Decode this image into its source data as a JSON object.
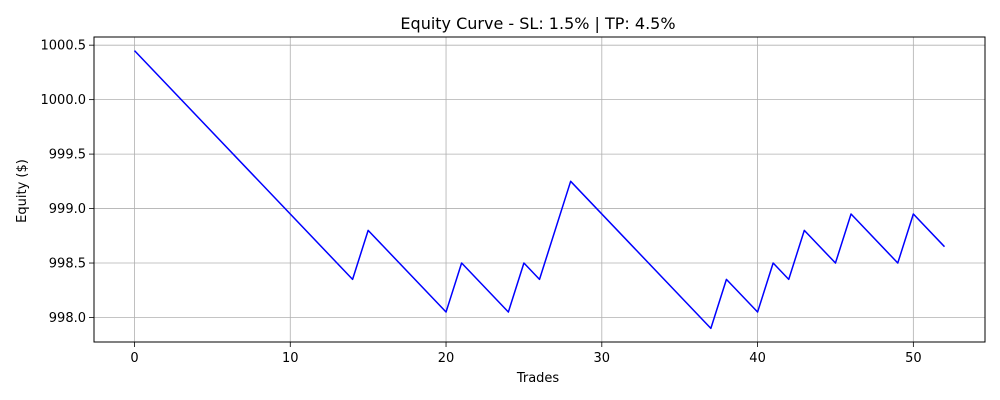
{
  "chart_data": {
    "type": "line",
    "title": "Equity Curve - SL: 1.5% | TP: 4.5%",
    "xlabel": "Trades",
    "ylabel": "Equity ($)",
    "xlim": [
      -2.6,
      54.6
    ],
    "ylim": [
      997.775,
      1000.575
    ],
    "xticks": [
      0,
      10,
      20,
      30,
      40,
      50
    ],
    "xtick_labels": [
      "0",
      "10",
      "20",
      "30",
      "40",
      "50"
    ],
    "yticks": [
      998.0,
      998.5,
      999.0,
      999.5,
      1000.0,
      1000.5
    ],
    "ytick_labels": [
      "998.0",
      "998.5",
      "999.0",
      "999.5",
      "1000.0",
      "1000.5"
    ],
    "grid": true,
    "series": [
      {
        "color": "#0000ff",
        "x": [
          0,
          14,
          15,
          20,
          21,
          24,
          25,
          26,
          28,
          37,
          38,
          40,
          41,
          42,
          43,
          45,
          46,
          49,
          50,
          52
        ],
        "y": [
          1000.45,
          998.35,
          998.8,
          998.05,
          998.5,
          998.05,
          998.5,
          998.35,
          999.25,
          997.9,
          998.35,
          998.05,
          998.5,
          998.35,
          998.8,
          998.5,
          998.95,
          998.5,
          998.95,
          998.65
        ]
      }
    ]
  }
}
